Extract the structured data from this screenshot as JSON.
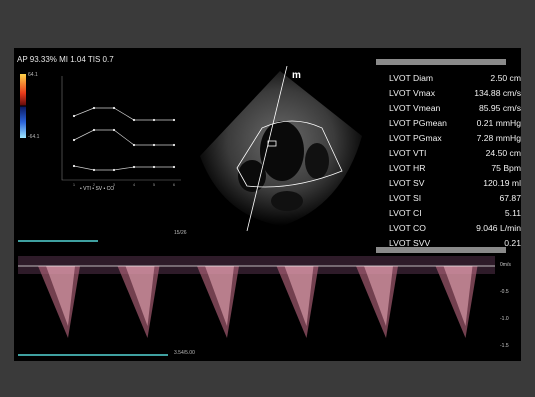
{
  "header": {
    "text": "AP 93.33%  MI 1.04  TIS 0.7"
  },
  "color_scale": {
    "top": "64.1",
    "bottom": "-64.1",
    "colors": [
      "#ffd34a",
      "#e83a1a",
      "#2a62d8",
      "#9fe6ff"
    ]
  },
  "trend": {
    "legend": "• VTI  • SV  • CO",
    "x_ticks": [
      "1",
      "2",
      "3",
      "4",
      "5",
      "6"
    ],
    "vti": [
      0.38,
      0.3,
      0.3,
      0.42,
      0.42,
      0.42
    ],
    "sv": [
      0.62,
      0.52,
      0.52,
      0.67,
      0.67,
      0.67
    ],
    "co": [
      0.88,
      0.92,
      0.92,
      0.89,
      0.89,
      0.89
    ]
  },
  "echo": {
    "marker": "m"
  },
  "measurements": [
    {
      "label": "LVOT Diam",
      "value": "2.50 cm"
    },
    {
      "label": "LVOT Vmax",
      "value": "134.88 cm/s"
    },
    {
      "label": "LVOT Vmean",
      "value": "85.95 cm/s"
    },
    {
      "label": "LVOT PGmean",
      "value": "0.21 mmHg"
    },
    {
      "label": "LVOT PGmax",
      "value": "7.28 mmHg"
    },
    {
      "label": "LVOT VTI",
      "value": "24.50 cm"
    },
    {
      "label": "LVOT HR",
      "value": "75 Bpm"
    },
    {
      "label": "LVOT SV",
      "value": "120.19 ml"
    },
    {
      "label": "LVOT SI",
      "value": "67.87"
    },
    {
      "label": "LVOT CI",
      "value": "5.11"
    },
    {
      "label": "LVOT CO",
      "value": "9.046 L/min"
    },
    {
      "label": "LVOT SVV",
      "value": "0.21"
    }
  ],
  "doppler": {
    "counter": "15/26",
    "time": "3.54/5.00",
    "scale_labels": [
      "0m/s",
      "-0.5",
      "-1.0",
      "-1.5"
    ],
    "beats": 6
  }
}
